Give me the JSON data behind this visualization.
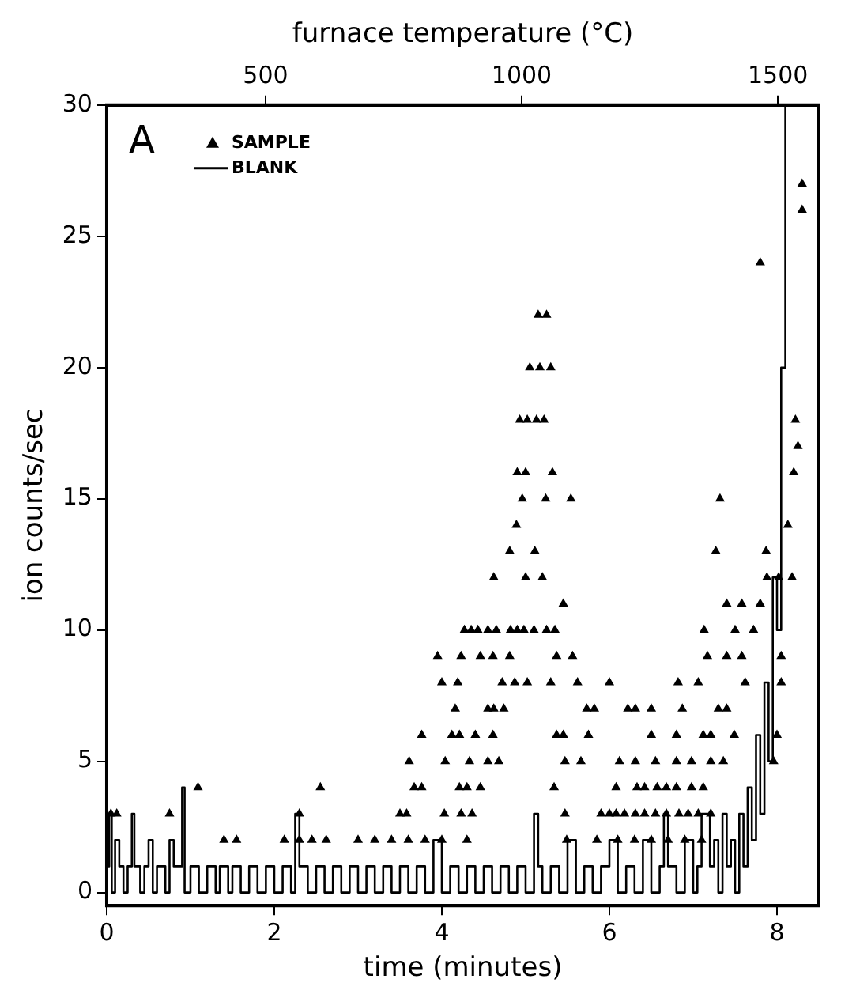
{
  "chart_data": {
    "type": "scatter",
    "xlabel": "time (minutes)",
    "ylabel": "ion counts/sec",
    "x2label": "furnace temperature (°C)",
    "xlim": [
      0,
      8.5
    ],
    "xticks": [
      0,
      2,
      4,
      6,
      8
    ],
    "x2lim": [
      190,
      1580
    ],
    "x2ticks": [
      500,
      1000,
      1500
    ],
    "ylim": [
      -0.5,
      30
    ],
    "yticks": [
      0,
      5,
      10,
      15,
      20,
      25,
      30
    ],
    "grid": false,
    "legend": "top left",
    "annotations": [
      "A"
    ],
    "series": [
      {
        "name": "SAMPLE",
        "type": "scatter",
        "marker": "triangle",
        "color": "#000000",
        "x": [
          8.3,
          8.3,
          7.8,
          5.15,
          5.25,
          5.05,
          5.17,
          5.3,
          4.93,
          5.02,
          5.13,
          5.22,
          8.22,
          8.25,
          4.9,
          5.0,
          5.32,
          8.2,
          4.96,
          5.24,
          5.54,
          7.32,
          4.89,
          8.13,
          4.81,
          5.11,
          7.27,
          7.87,
          4.62,
          5.0,
          5.2,
          7.88,
          8.02,
          8.18,
          5.45,
          7.4,
          7.58,
          7.8,
          4.27,
          4.35,
          4.43,
          4.55,
          4.65,
          4.82,
          4.9,
          4.98,
          5.1,
          5.25,
          5.35,
          7.13,
          7.5,
          7.72,
          3.95,
          4.23,
          4.46,
          4.61,
          4.81,
          5.37,
          5.56,
          7.17,
          7.4,
          7.58,
          8.05,
          4.0,
          4.19,
          4.72,
          4.87,
          5.02,
          5.3,
          5.62,
          6.0,
          6.82,
          7.06,
          7.62,
          8.05,
          4.16,
          4.55,
          4.62,
          4.74,
          5.73,
          5.82,
          6.22,
          6.31,
          6.5,
          6.87,
          7.3,
          7.4,
          3.76,
          4.12,
          4.21,
          4.4,
          4.61,
          5.37,
          5.45,
          5.75,
          6.5,
          6.8,
          7.12,
          7.21,
          7.49,
          8.0,
          3.61,
          4.04,
          4.33,
          4.55,
          4.68,
          5.47,
          5.66,
          6.12,
          6.31,
          6.55,
          6.8,
          6.98,
          7.21,
          7.36,
          7.96,
          1.09,
          2.55,
          3.67,
          3.76,
          4.21,
          4.3,
          4.46,
          5.34,
          6.08,
          6.33,
          6.42,
          6.57,
          6.68,
          6.8,
          6.98,
          7.12,
          0.05,
          0.12,
          0.75,
          2.3,
          3.5,
          3.58,
          4.03,
          4.23,
          4.36,
          5.47,
          5.9,
          6.0,
          6.08,
          6.18,
          6.31,
          6.42,
          6.55,
          6.68,
          6.83,
          6.94,
          7.06,
          7.21,
          1.4,
          1.55,
          2.12,
          2.3,
          2.45,
          2.62,
          3.0,
          3.2,
          3.4,
          3.6,
          3.8,
          4.0,
          4.3,
          5.49,
          5.85,
          6.1,
          6.3,
          6.5,
          6.7,
          6.9,
          7.1
        ],
        "values": [
          27,
          26,
          24,
          22,
          22,
          20,
          20,
          20,
          18,
          18,
          18,
          18,
          18,
          17,
          16,
          16,
          16,
          16,
          15,
          15,
          15,
          15,
          14,
          14,
          13,
          13,
          13,
          13,
          12,
          12,
          12,
          12,
          12,
          12,
          11,
          11,
          11,
          11,
          10,
          10,
          10,
          10,
          10,
          10,
          10,
          10,
          10,
          10,
          10,
          10,
          10,
          10,
          9,
          9,
          9,
          9,
          9,
          9,
          9,
          9,
          9,
          9,
          9,
          8,
          8,
          8,
          8,
          8,
          8,
          8,
          8,
          8,
          8,
          8,
          8,
          7,
          7,
          7,
          7,
          7,
          7,
          7,
          7,
          7,
          7,
          7,
          7,
          6,
          6,
          6,
          6,
          6,
          6,
          6,
          6,
          6,
          6,
          6,
          6,
          6,
          6,
          5,
          5,
          5,
          5,
          5,
          5,
          5,
          5,
          5,
          5,
          5,
          5,
          5,
          5,
          5,
          4,
          4,
          4,
          4,
          4,
          4,
          4,
          4,
          4,
          4,
          4,
          4,
          4,
          4,
          4,
          4,
          3,
          3,
          3,
          3,
          3,
          3,
          3,
          3,
          3,
          3,
          3,
          3,
          3,
          3,
          3,
          3,
          3,
          3,
          3,
          3,
          3,
          3,
          2,
          2,
          2,
          2,
          2,
          2,
          2,
          2,
          2,
          2,
          2,
          2,
          2,
          2,
          2,
          2,
          2,
          2,
          2,
          2,
          2
        ]
      },
      {
        "name": "BLANK",
        "type": "step",
        "marker": "none",
        "color": "#000000",
        "x": [
          0,
          0.03,
          0.06,
          0.1,
          0.15,
          0.2,
          0.25,
          0.3,
          0.33,
          0.4,
          0.45,
          0.5,
          0.55,
          0.6,
          0.7,
          0.75,
          0.8,
          0.9,
          0.93,
          1.0,
          1.1,
          1.2,
          1.3,
          1.35,
          1.45,
          1.5,
          1.6,
          1.7,
          1.8,
          1.9,
          2.0,
          2.1,
          2.2,
          2.25,
          2.3,
          2.4,
          2.5,
          2.6,
          2.7,
          2.8,
          2.9,
          3.0,
          3.1,
          3.2,
          3.3,
          3.4,
          3.5,
          3.6,
          3.7,
          3.8,
          3.9,
          4.0,
          4.1,
          4.2,
          4.3,
          4.4,
          4.5,
          4.6,
          4.7,
          4.8,
          4.9,
          5.0,
          5.1,
          5.15,
          5.2,
          5.3,
          5.4,
          5.5,
          5.6,
          5.7,
          5.8,
          5.9,
          6.0,
          6.1,
          6.2,
          6.3,
          6.4,
          6.5,
          6.6,
          6.65,
          6.7,
          6.8,
          6.9,
          7.0,
          7.05,
          7.1,
          7.2,
          7.25,
          7.3,
          7.35,
          7.4,
          7.45,
          7.5,
          7.55,
          7.6,
          7.65,
          7.7,
          7.75,
          7.8,
          7.85,
          7.9,
          7.95,
          8.0,
          8.05,
          8.1,
          8.15
        ],
        "values": [
          1,
          3,
          0,
          2,
          1,
          0,
          1,
          3,
          1,
          0,
          1,
          2,
          0,
          1,
          0,
          2,
          1,
          4,
          0,
          1,
          0,
          1,
          0,
          1,
          0,
          1,
          0,
          1,
          0,
          1,
          0,
          1,
          0,
          3,
          1,
          0,
          1,
          0,
          1,
          0,
          1,
          0,
          1,
          0,
          1,
          0,
          1,
          0,
          1,
          0,
          2,
          0,
          1,
          0,
          1,
          0,
          1,
          0,
          1,
          0,
          1,
          0,
          3,
          1,
          0,
          1,
          0,
          2,
          0,
          1,
          0,
          1,
          2,
          0,
          1,
          0,
          2,
          0,
          1,
          3,
          1,
          0,
          2,
          0,
          1,
          3,
          1,
          2,
          0,
          3,
          1,
          2,
          0,
          3,
          1,
          4,
          2,
          6,
          3,
          8,
          5,
          12,
          10,
          20,
          30,
          30
        ]
      }
    ]
  }
}
